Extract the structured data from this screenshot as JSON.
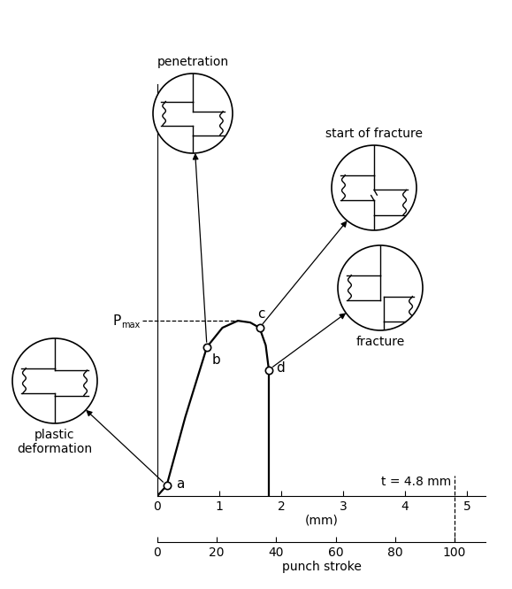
{
  "chart_data": {
    "type": "line",
    "x": [
      0,
      0.15,
      0.45,
      0.8,
      1.05,
      1.3,
      1.5,
      1.65,
      1.75,
      1.8,
      1.8
    ],
    "values": [
      0,
      0.06,
      0.45,
      0.85,
      0.96,
      1.0,
      0.99,
      0.96,
      0.86,
      0.72,
      0
    ],
    "color": "#000000",
    "marker": "o",
    "xlim": [
      0,
      5.3
    ],
    "ylim": [
      0,
      2.35
    ],
    "xticks": [
      0,
      1,
      2,
      3,
      4,
      5
    ],
    "x_label": "(mm)",
    "tick_labels": "x",
    "grid": false,
    "x2lim": [
      0,
      110.4
    ],
    "x2ticks": [
      0,
      20,
      40,
      60,
      80,
      100
    ],
    "x2_label": "punch stroke",
    "points": [
      {
        "label": "a",
        "x": 0.15,
        "y": 0.06
      },
      {
        "label": "b",
        "x": 0.8,
        "y": 0.85
      },
      {
        "label": "c",
        "x": 1.65,
        "y": 0.96
      },
      {
        "label": "d",
        "x": 1.8,
        "y": 0.72
      }
    ],
    "pmax": {
      "label": "P",
      "subscript": "max",
      "y": 1.0
    },
    "thickness": {
      "label": "t = 4.8 mm",
      "x": 4.8
    },
    "insets": [
      {
        "title": "plastic deformation",
        "point": "a"
      },
      {
        "title": "penetration",
        "point": "b"
      },
      {
        "title": "start of fracture",
        "point": "c"
      },
      {
        "title": "fracture",
        "point": "d"
      }
    ]
  }
}
